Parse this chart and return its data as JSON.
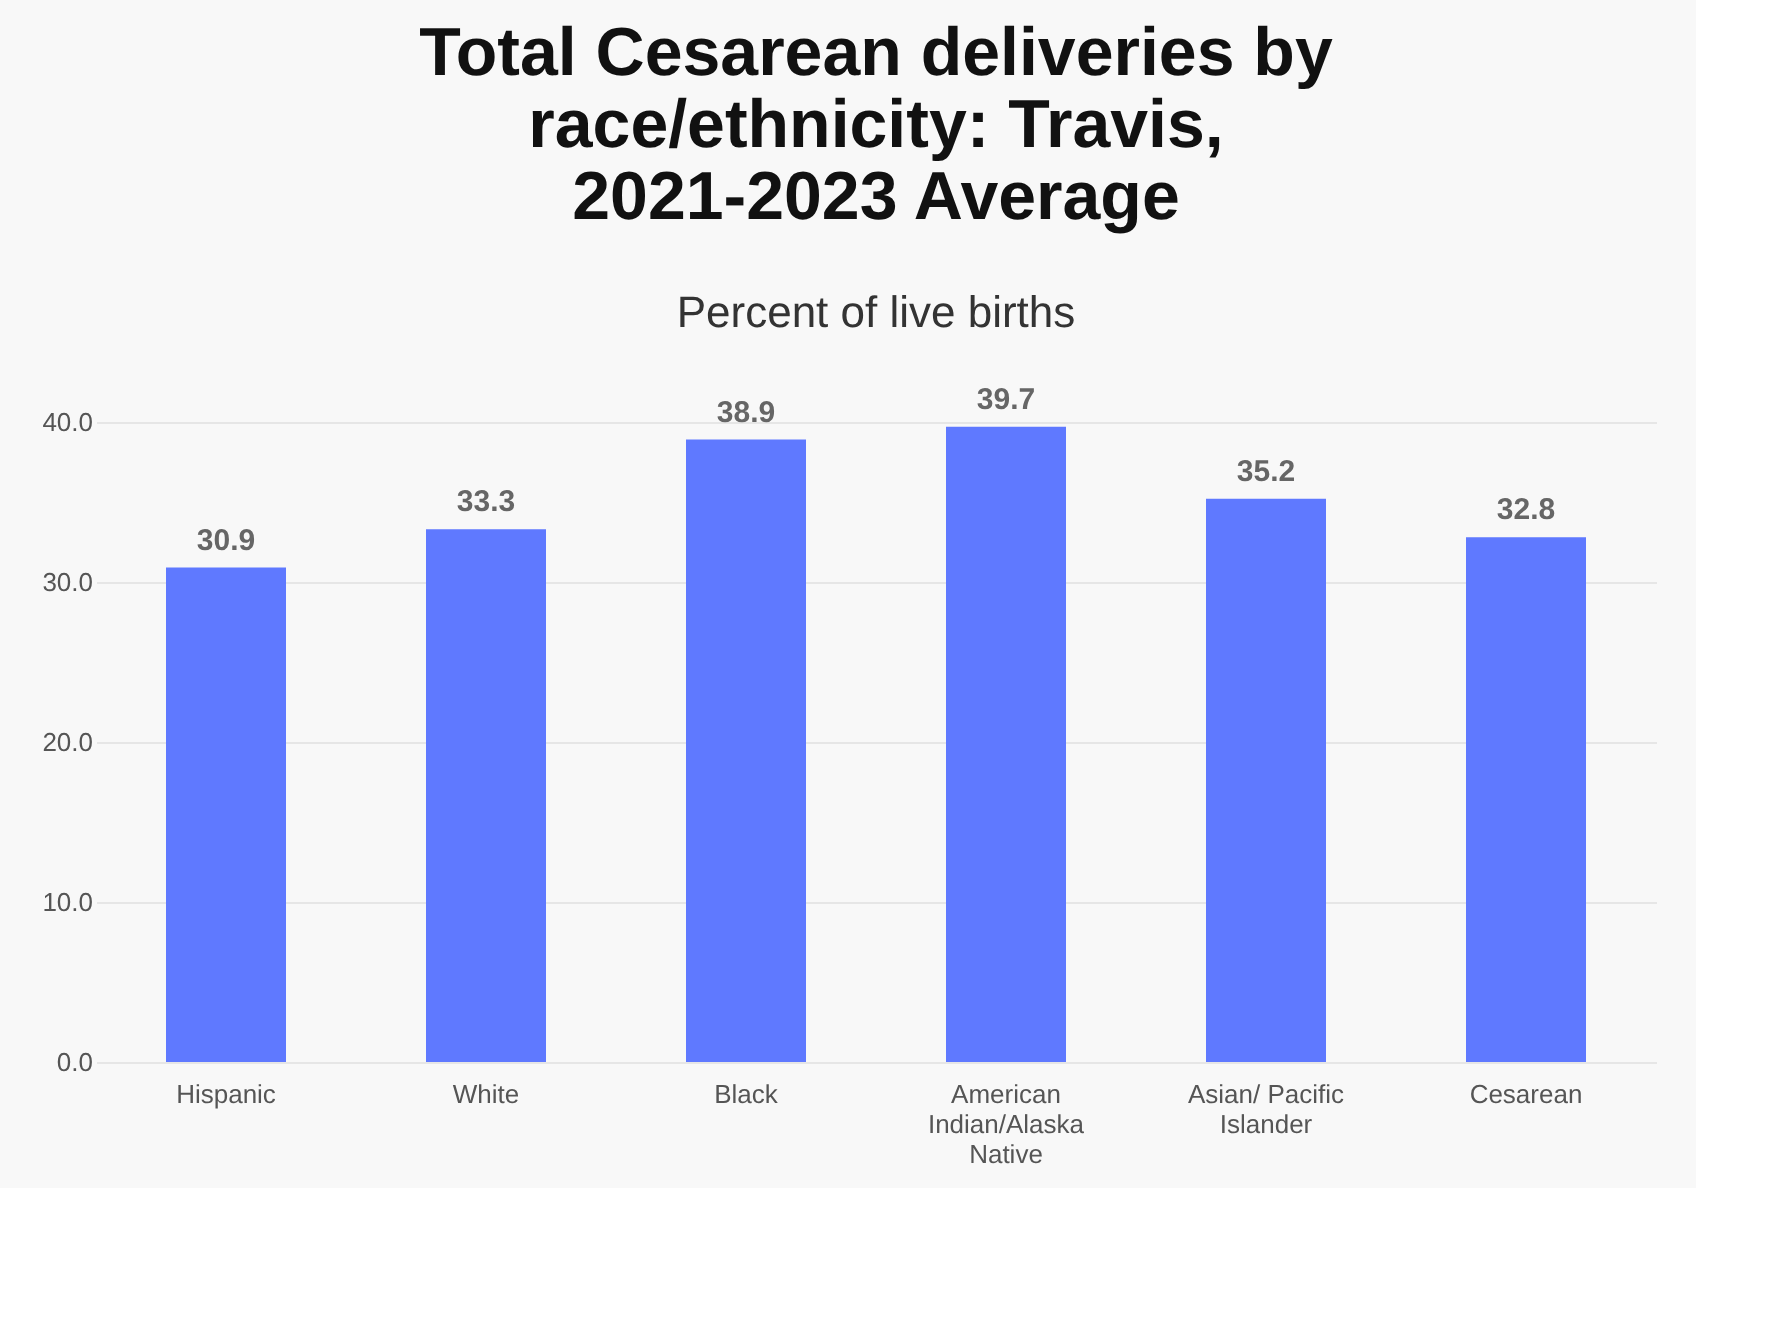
{
  "chart_data": {
    "type": "bar",
    "title": "Total Cesarean deliveries by race/ethnicity: Travis, 2021-2023 Average",
    "subtitle": "Percent of live births",
    "categories": [
      "Hispanic",
      "White",
      "Black",
      "American Indian/Alaska Native",
      "Asian/ Pacific Islander",
      "Cesarean"
    ],
    "values": [
      30.9,
      33.3,
      38.9,
      39.7,
      35.2,
      32.8
    ],
    "color": "#5f79ff",
    "ylim": [
      0,
      40
    ],
    "yticks": [
      {
        "value": 0,
        "label": "0.0"
      },
      {
        "value": 10,
        "label": "10.0"
      },
      {
        "value": 20,
        "label": "20.0"
      },
      {
        "value": 30,
        "label": "30.0"
      },
      {
        "value": 40,
        "label": "40.0"
      }
    ],
    "grid": "y",
    "data_labels": true
  }
}
